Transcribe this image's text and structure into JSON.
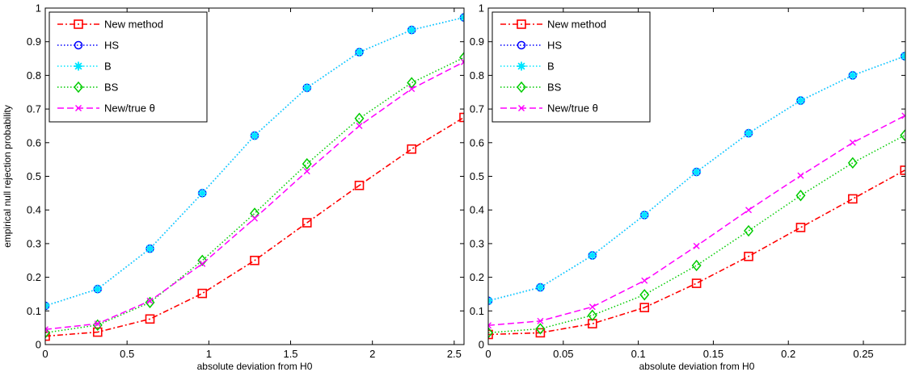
{
  "chart_data": [
    {
      "type": "line",
      "title": "",
      "xlabel": "absolute deviation from H0",
      "ylabel": "empirical null rejection probability",
      "xlim": [
        0,
        2.56
      ],
      "ylim": [
        0,
        1
      ],
      "xticks": [
        0,
        0.5,
        1,
        1.5,
        2,
        2.5
      ],
      "xtick_labels": [
        "0",
        "0.5",
        "1",
        "1.5",
        "2",
        "2.5"
      ],
      "yticks": [
        0,
        0.1,
        0.2,
        0.3,
        0.4,
        0.5,
        0.6,
        0.7,
        0.8,
        0.9,
        1
      ],
      "ytick_labels": [
        "0",
        "0.1",
        "0.2",
        "0.3",
        "0.4",
        "0.5",
        "0.6",
        "0.7",
        "0.8",
        "0.9",
        "1"
      ],
      "grid": false,
      "legend_position": "top-left",
      "x": [
        0,
        0.32,
        0.64,
        0.96,
        1.28,
        1.6,
        1.92,
        2.24,
        2.56
      ],
      "series": [
        {
          "name": "New method",
          "color": "#ff0000",
          "marker": "square",
          "line": "dashdot",
          "values": [
            0.025,
            0.037,
            0.076,
            0.152,
            0.25,
            0.362,
            0.473,
            0.581,
            0.675
          ]
        },
        {
          "name": "HS",
          "color": "#0000ff",
          "marker": "circle",
          "line": "dotted",
          "values": [
            0.115,
            0.165,
            0.285,
            0.45,
            0.621,
            0.763,
            0.869,
            0.935,
            0.972
          ]
        },
        {
          "name": "B",
          "color": "#00e5ff",
          "marker": "star",
          "line": "dotted",
          "values": [
            0.115,
            0.165,
            0.285,
            0.45,
            0.621,
            0.763,
            0.869,
            0.935,
            0.972
          ]
        },
        {
          "name": "BS",
          "color": "#00cc00",
          "marker": "diamond",
          "line": "dotted",
          "values": [
            0.035,
            0.058,
            0.125,
            0.25,
            0.39,
            0.537,
            0.672,
            0.778,
            0.853
          ]
        },
        {
          "name": "New/true θ",
          "color": "#ff00ff",
          "marker": "x",
          "line": "dashed",
          "values": [
            0.045,
            0.062,
            0.13,
            0.24,
            0.375,
            0.515,
            0.65,
            0.76,
            0.84
          ]
        }
      ]
    },
    {
      "type": "line",
      "title": "",
      "xlabel": "absolute deviation from H0",
      "ylabel": "",
      "xlim": [
        0,
        0.278
      ],
      "ylim": [
        0,
        1
      ],
      "xticks": [
        0,
        0.05,
        0.1,
        0.15,
        0.2,
        0.25
      ],
      "xtick_labels": [
        "0",
        "0.05",
        "0.1",
        "0.15",
        "0.2",
        "0.25"
      ],
      "yticks": [
        0,
        0.1,
        0.2,
        0.3,
        0.4,
        0.5,
        0.6,
        0.7,
        0.8,
        0.9,
        1
      ],
      "ytick_labels": [
        "0",
        "0.1",
        "0.2",
        "0.3",
        "0.4",
        "0.5",
        "0.6",
        "0.7",
        "0.8",
        "0.9",
        "1"
      ],
      "grid": false,
      "legend_position": "top-left",
      "x": [
        0,
        0.0347,
        0.0694,
        0.1041,
        0.1388,
        0.1735,
        0.2082,
        0.2429,
        0.2776
      ],
      "series": [
        {
          "name": "New method",
          "color": "#ff0000",
          "marker": "square",
          "line": "dashdot",
          "values": [
            0.03,
            0.035,
            0.062,
            0.11,
            0.182,
            0.262,
            0.348,
            0.433,
            0.518
          ]
        },
        {
          "name": "HS",
          "color": "#0000ff",
          "marker": "circle",
          "line": "dotted",
          "values": [
            0.13,
            0.17,
            0.265,
            0.385,
            0.513,
            0.628,
            0.725,
            0.8,
            0.857
          ]
        },
        {
          "name": "B",
          "color": "#00e5ff",
          "marker": "star",
          "line": "dotted",
          "values": [
            0.13,
            0.17,
            0.265,
            0.385,
            0.513,
            0.628,
            0.725,
            0.8,
            0.857
          ]
        },
        {
          "name": "BS",
          "color": "#00cc00",
          "marker": "diamond",
          "line": "dotted",
          "values": [
            0.035,
            0.047,
            0.087,
            0.148,
            0.235,
            0.338,
            0.443,
            0.54,
            0.622
          ]
        },
        {
          "name": "New/true θ",
          "color": "#ff00ff",
          "marker": "x",
          "line": "dashed",
          "values": [
            0.057,
            0.07,
            0.112,
            0.19,
            0.293,
            0.4,
            0.502,
            0.6,
            0.68
          ]
        }
      ]
    }
  ]
}
